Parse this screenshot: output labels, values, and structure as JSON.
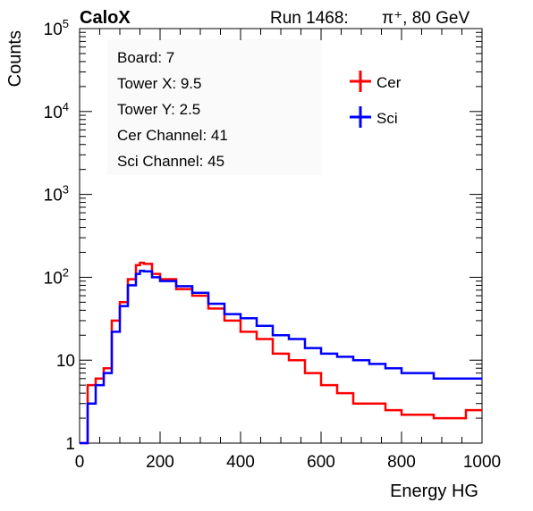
{
  "header": {
    "logo": "CaloX",
    "run_label": "Run 1468:",
    "particle": "π⁺, 80 GeV"
  },
  "info_box": {
    "lines": [
      "Board: 7",
      "Tower X: 9.5",
      "Tower Y: 2.5",
      "Cer Channel: 41",
      "Sci Channel: 45"
    ]
  },
  "chart_data": {
    "type": "line",
    "xlabel": "Energy HG",
    "ylabel": "Counts",
    "xlim": [
      0,
      1000
    ],
    "ylim": [
      1,
      100000
    ],
    "yscale": "log",
    "grid": false,
    "legend_position": "top-right",
    "x_ticks": [
      "0",
      "200",
      "400",
      "600",
      "800",
      "1000"
    ],
    "y_ticks": [
      "1",
      "10",
      "10^2",
      "10^3",
      "10^4",
      "10^5"
    ],
    "x": [
      0,
      20,
      40,
      60,
      80,
      100,
      120,
      140,
      150,
      160,
      180,
      200,
      240,
      280,
      320,
      360,
      400,
      440,
      480,
      520,
      560,
      600,
      640,
      680,
      720,
      760,
      800,
      840,
      880,
      920,
      960,
      1000
    ],
    "series": [
      {
        "name": "Cer",
        "color": "#ff0000",
        "values": [
          1,
          5,
          6,
          8,
          30,
          50,
          95,
          140,
          150,
          145,
          110,
          95,
          72,
          60,
          42,
          30,
          22,
          18,
          12,
          10,
          7,
          5,
          4,
          3,
          3,
          2.5,
          2.2,
          2.2,
          2,
          2,
          2.5,
          2.5
        ]
      },
      {
        "name": "Sci",
        "color": "#0000ff",
        "values": [
          1,
          3,
          5,
          7,
          22,
          45,
          80,
          110,
          120,
          118,
          100,
          90,
          78,
          65,
          48,
          36,
          32,
          26,
          20,
          18,
          14,
          12,
          11,
          10,
          9,
          8,
          7,
          7,
          6,
          6,
          6,
          5
        ]
      }
    ]
  }
}
